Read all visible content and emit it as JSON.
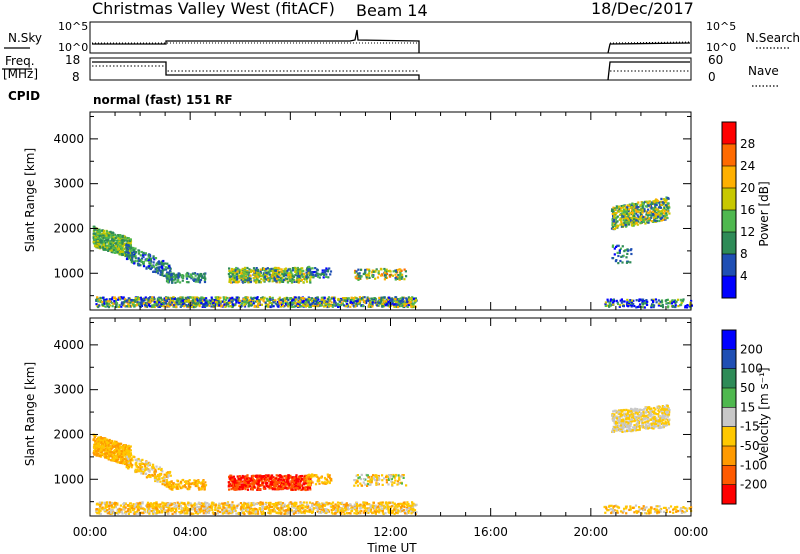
{
  "header": {
    "title": "Christmas Valley West (fitACF)",
    "beam": "Beam 14",
    "date": "18/Dec/2017"
  },
  "top_panel": {
    "left_label": "N.Sky",
    "right_label": "N.Search",
    "left_ticks": [
      "10^5",
      "10^0"
    ],
    "right_ticks": [
      "10^5",
      "10^0"
    ]
  },
  "freq_panel": {
    "left_label_1": "Freq.",
    "left_label_2": "[MHz]",
    "right_label": "Nave",
    "left_ticks": [
      "18",
      "8"
    ],
    "right_ticks": [
      "60",
      "0"
    ]
  },
  "cpid": {
    "label": "CPID",
    "text": "normal (fast) 151 RF"
  },
  "power_colorbar": {
    "label": "Power [dB]",
    "ticks": [
      "28",
      "24",
      "20",
      "16",
      "12",
      "8",
      "4"
    ],
    "colors": [
      "#0000ff",
      "#1f4fb4",
      "#2e8b57",
      "#4fb84f",
      "#c8c800",
      "#ffb000",
      "#ff6a00",
      "#ff0000"
    ]
  },
  "velocity_colorbar": {
    "label": "Velocity [m s⁻¹]",
    "ticks": [
      "200",
      "100",
      "50",
      "15",
      "-15",
      "-50",
      "-100",
      "-200"
    ],
    "colors": [
      "#ff0000",
      "#ff5a00",
      "#ff9a00",
      "#ffc800",
      "#c8c8c8",
      "#4fb84f",
      "#2e8b57",
      "#1f4fb4",
      "#0000ff"
    ]
  },
  "chart_data": [
    {
      "type": "heatmap",
      "name": "power",
      "ylabel": "Slant Range [km]",
      "xlabel": "Time UT",
      "x_ticks": [
        "00:00",
        "04:00",
        "08:00",
        "12:00",
        "16:00",
        "20:00",
        "00:00"
      ],
      "y_ticks": [
        "1000",
        "2000",
        "3000",
        "4000"
      ],
      "xlim": [
        0,
        24
      ],
      "ylim": [
        180,
        4600
      ]
    },
    {
      "type": "heatmap",
      "name": "velocity",
      "ylabel": "Slant Range [km]",
      "xlabel": "Time UT",
      "x_ticks": [
        "00:00",
        "04:00",
        "08:00",
        "12:00",
        "16:00",
        "20:00",
        "00:00"
      ],
      "y_ticks": [
        "1000",
        "2000",
        "3000",
        "4000"
      ],
      "xlim": [
        0,
        24
      ],
      "ylim": [
        180,
        4600
      ]
    }
  ]
}
